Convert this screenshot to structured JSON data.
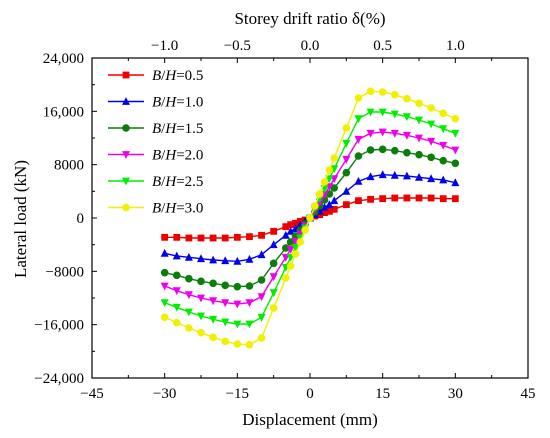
{
  "chart_data": {
    "type": "line",
    "xlabel": "Displacement (mm)",
    "ylabel": "Lateral load (kN)",
    "top_axis_label": "Storey drift ratio δ(%)",
    "xlim": [
      -45,
      45
    ],
    "ylim": [
      -24000,
      24000
    ],
    "x_ticks": [
      -45,
      -30,
      -15,
      0,
      15,
      30,
      45
    ],
    "x_tick_labels": [
      "−45",
      "−30",
      "−15",
      "0",
      "15",
      "30",
      "45"
    ],
    "y_ticks": [
      -24000,
      -16000,
      -8000,
      0,
      8000,
      16000,
      24000
    ],
    "y_tick_labels": [
      "−24,000",
      "−16,000",
      "−8000",
      "0",
      "8000",
      "16,000",
      "24,000"
    ],
    "top_ticks": [
      -1.0,
      -0.5,
      0.0,
      0.5,
      1.0
    ],
    "top_tick_labels": [
      "−1.0",
      "−0.5",
      "0.0",
      "0.5",
      "1.0"
    ],
    "top_axis_scale_mm_per_percent": 30,
    "grid": false,
    "legend_position": "top-left",
    "x": [
      -30,
      -27.5,
      -25,
      -22.5,
      -20,
      -17.5,
      -15,
      -12.5,
      -10,
      -7.5,
      -5,
      -4,
      -3,
      -2,
      -1,
      0,
      1,
      2,
      3,
      4,
      5,
      7.5,
      10,
      12.5,
      15,
      17.5,
      20,
      22.5,
      25,
      27.5,
      30
    ],
    "series": [
      {
        "name": "B/H=0.5",
        "label_parts": [
          "B",
          "/",
          "H",
          "=0.5"
        ],
        "color": "#ee0000",
        "marker": "square",
        "values": [
          -2900,
          -2900,
          -3000,
          -3000,
          -3000,
          -3000,
          -2900,
          -2800,
          -2600,
          -2000,
          -1300,
          -1000,
          -800,
          -500,
          -300,
          0,
          300,
          500,
          800,
          1000,
          1300,
          2000,
          2600,
          2800,
          2900,
          3000,
          3000,
          3000,
          3000,
          2900,
          2900
        ]
      },
      {
        "name": "B/H=1.0",
        "label_parts": [
          "B",
          "/",
          "H",
          "=1.0"
        ],
        "color": "#0000ee",
        "marker": "triangle-up",
        "values": [
          -5300,
          -5700,
          -5900,
          -6100,
          -6300,
          -6400,
          -6500,
          -6200,
          -5500,
          -4000,
          -2600,
          -2000,
          -1600,
          -1000,
          -500,
          0,
          500,
          1000,
          1600,
          2000,
          2600,
          4000,
          5500,
          6200,
          6500,
          6400,
          6300,
          6100,
          5900,
          5700,
          5300
        ]
      },
      {
        "name": "B/H=1.5",
        "label_parts": [
          "B",
          "/",
          "H",
          "=1.5"
        ],
        "color": "#0a7d0a",
        "marker": "circle",
        "values": [
          -8200,
          -8600,
          -9100,
          -9500,
          -9800,
          -10100,
          -10300,
          -10200,
          -9300,
          -6800,
          -4500,
          -3600,
          -2700,
          -1800,
          -900,
          0,
          900,
          1800,
          2700,
          3600,
          4500,
          6800,
          9300,
          10200,
          10300,
          10100,
          9800,
          9500,
          9100,
          8600,
          8200
        ]
      },
      {
        "name": "B/H=2.0",
        "label_parts": [
          "B",
          "/",
          "H",
          "=2.0"
        ],
        "color": "#ee00ee",
        "marker": "triangle-down",
        "values": [
          -10200,
          -10900,
          -11500,
          -12000,
          -12400,
          -12700,
          -12900,
          -12700,
          -11800,
          -8800,
          -5900,
          -4700,
          -3500,
          -2400,
          -1200,
          0,
          1200,
          2400,
          3500,
          4700,
          5900,
          8800,
          11800,
          12700,
          12900,
          12700,
          12400,
          12000,
          11500,
          10900,
          10200
        ]
      },
      {
        "name": "B/H=2.5",
        "label_parts": [
          "B",
          "/",
          "H",
          "=2.5"
        ],
        "color": "#00ee00",
        "marker": "triangle-down",
        "values": [
          -12700,
          -13400,
          -14100,
          -14700,
          -15200,
          -15600,
          -15900,
          -15900,
          -14900,
          -11200,
          -7400,
          -5900,
          -4400,
          -3000,
          -1500,
          0,
          1500,
          3000,
          4400,
          5900,
          7400,
          11200,
          14900,
          15900,
          15900,
          15600,
          15200,
          14700,
          14100,
          13400,
          12700
        ]
      },
      {
        "name": "B/H=3.0",
        "label_parts": [
          "B",
          "/",
          "H",
          "=3.0"
        ],
        "color": "#f0f000",
        "marker": "circle",
        "values": [
          -14900,
          -15700,
          -16500,
          -17200,
          -17900,
          -18500,
          -18900,
          -19000,
          -18000,
          -13500,
          -9000,
          -7200,
          -5400,
          -3600,
          -1800,
          0,
          1800,
          3600,
          5400,
          7200,
          9000,
          13500,
          18000,
          19000,
          18900,
          18500,
          17900,
          17200,
          16500,
          15700,
          14900
        ]
      }
    ]
  }
}
